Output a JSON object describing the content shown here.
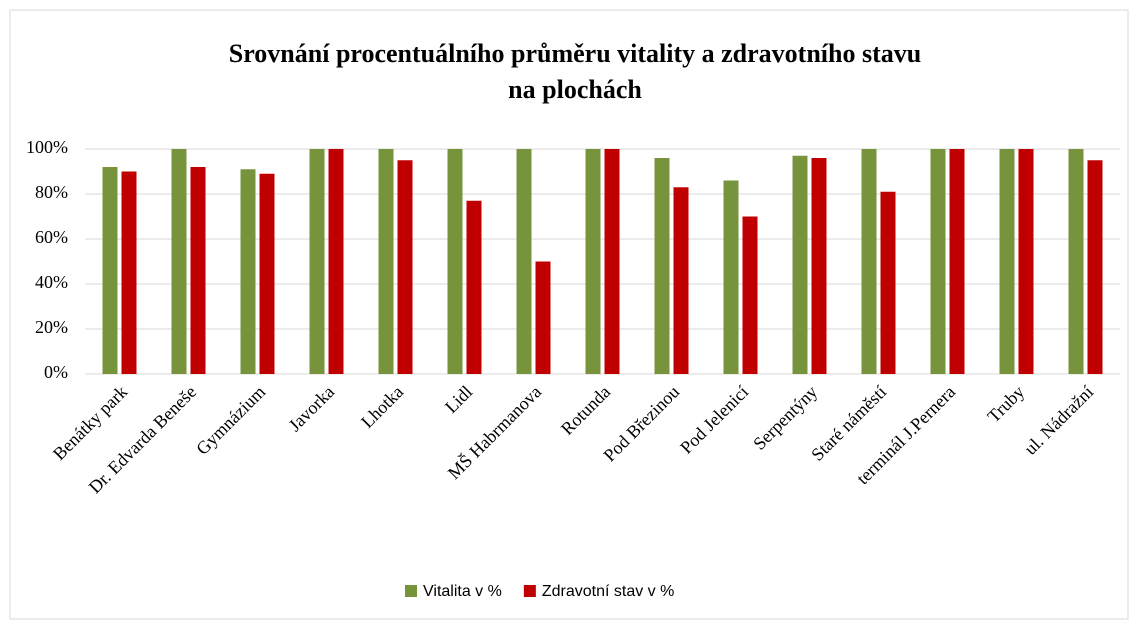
{
  "chart_data": {
    "type": "bar",
    "title": [
      "Srovnání procentuálního průměru vitality a zdravotního stavu",
      "na plochách"
    ],
    "categories": [
      "Benátky park",
      "Dr. Edvarda Beneše",
      "Gymnázium",
      "Javorka",
      "Lhotka",
      "Lidl",
      "MŠ Habrmanova",
      "Rotunda",
      "Pod Březinou",
      "Pod Jelenicí",
      "Serpentýny",
      "Staré náměstí",
      "terminál J.Pernera",
      "Truby",
      "ul. Nádražní"
    ],
    "series": [
      {
        "name": "Vitalita v %",
        "color": "#77933c",
        "values": [
          92,
          100,
          91,
          100,
          100,
          100,
          100,
          100,
          96,
          86,
          97,
          100,
          100,
          100,
          100
        ]
      },
      {
        "name": "Zdravotní stav v %",
        "color": "#c00000",
        "values": [
          90,
          92,
          89,
          100,
          95,
          77,
          50,
          100,
          83,
          70,
          96,
          81,
          100,
          100,
          95
        ]
      }
    ],
    "ylim": [
      0,
      100
    ],
    "yticks": [
      {
        "value": 0,
        "label": "0%"
      },
      {
        "value": 20,
        "label": "20%"
      },
      {
        "value": 40,
        "label": "40%"
      },
      {
        "value": 60,
        "label": "60%"
      },
      {
        "value": 80,
        "label": "80%"
      },
      {
        "value": 100,
        "label": "100%"
      }
    ],
    "grid": true,
    "legend": "bottom"
  }
}
